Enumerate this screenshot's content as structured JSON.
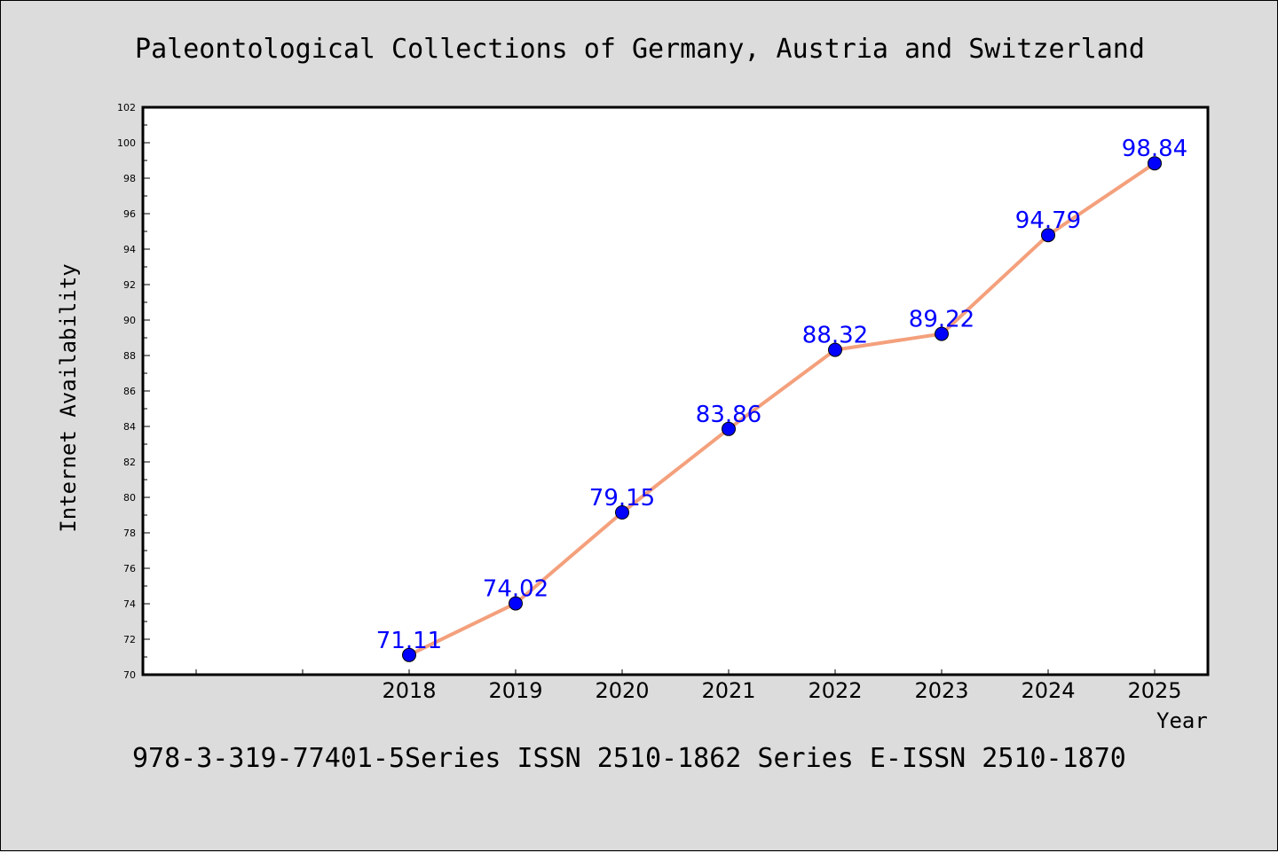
{
  "chart_data": {
    "type": "line",
    "title": "Paleontological Collections of Germany, Austria and Switzerland",
    "footer": "978-3-319-77401-5Series ISSN 2510-1862 Series E-ISSN 2510-1870",
    "xlabel": "Year",
    "ylabel": "Internet Availability",
    "categories": [
      "2018",
      "2019",
      "2020",
      "2021",
      "2022",
      "2023",
      "2024",
      "2025"
    ],
    "series": [
      {
        "values": [
          71.11,
          74.02,
          79.15,
          83.86,
          88.32,
          89.22,
          94.79,
          98.84
        ],
        "data_labels": [
          "71.11",
          "74.02",
          "79.15",
          "83.86",
          "88.32",
          "89.22",
          "94.79",
          "98.84"
        ],
        "line_color": "#f4a07c",
        "marker_color": "#0000ff"
      }
    ],
    "x_slots_before_first_category": 2,
    "ylim": [
      70,
      102
    ],
    "yticks": [
      "70",
      "72",
      "74",
      "76",
      "78",
      "80",
      "82",
      "84",
      "86",
      "88",
      "90",
      "92",
      "94",
      "96",
      "98",
      "100",
      "102"
    ],
    "grid": false,
    "legend": "none",
    "plot_background": "#ffffff",
    "page_background": "#dcdcdc"
  }
}
